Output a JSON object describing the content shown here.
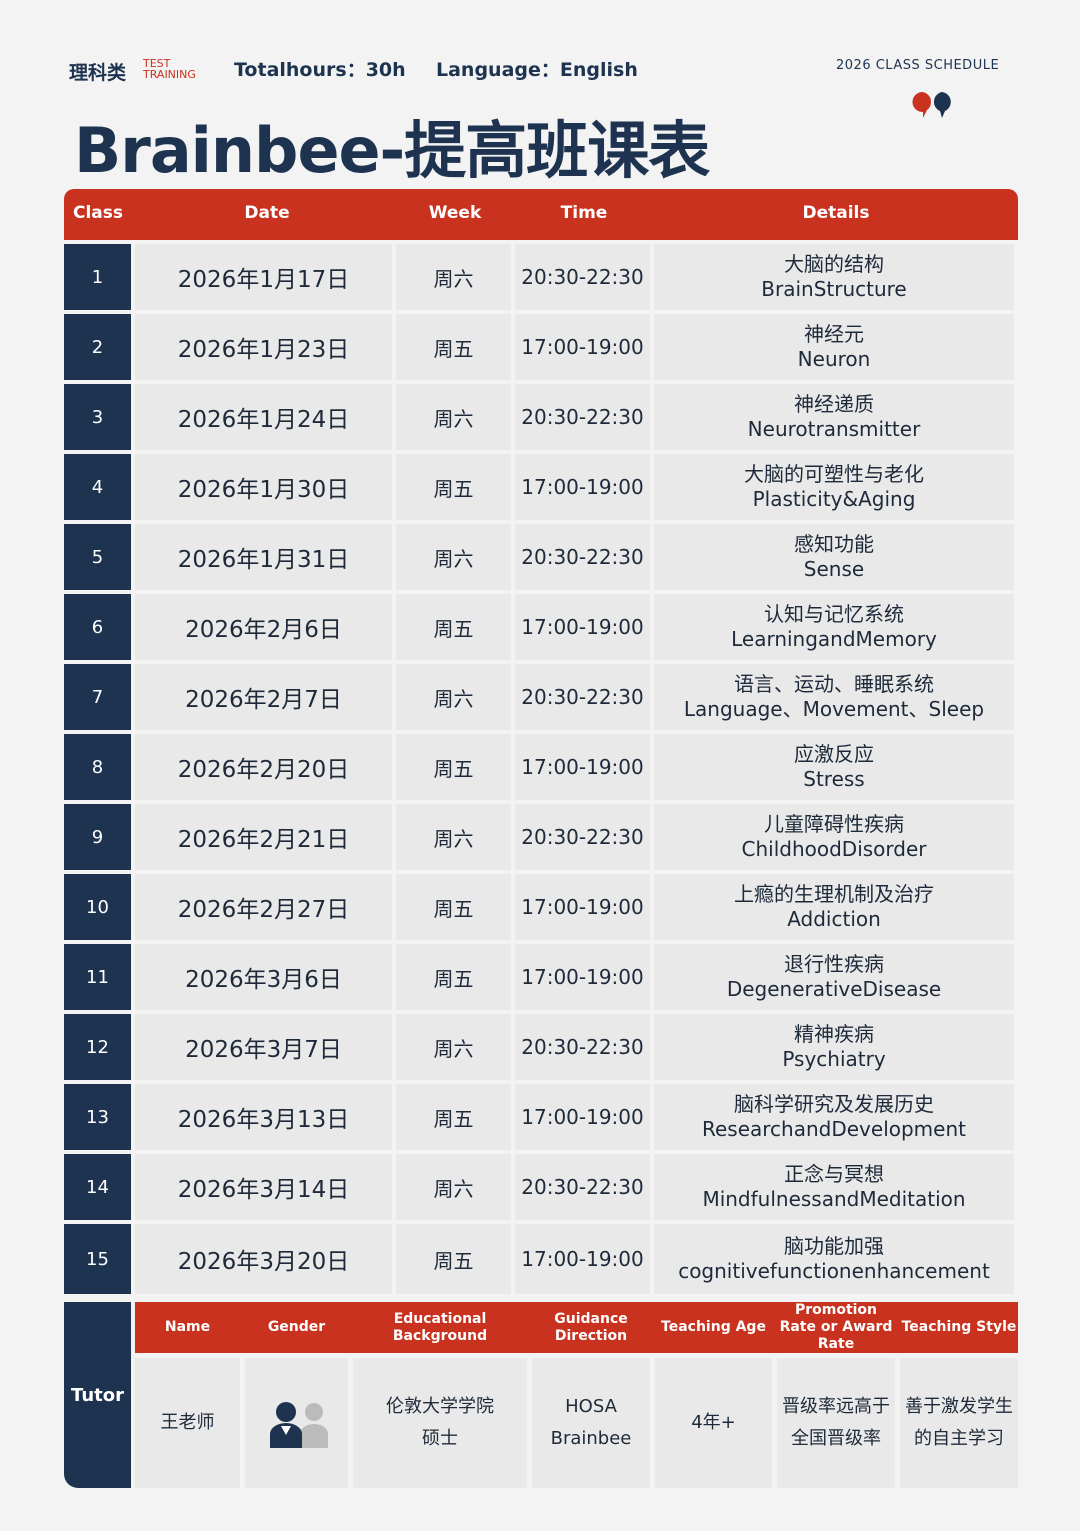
{
  "header": {
    "logo_cn": "理科类",
    "logo_en_1": "TEST",
    "logo_en_2": "TRAINING",
    "total_hours": "Totalhours：30h",
    "language": "Language：English",
    "schedule_label": "2026 CLASS SCHEDULE",
    "title": "Brainbee-提高班课表"
  },
  "colors": {
    "navy": "#1e3350",
    "red": "#c8321e"
  },
  "table": {
    "columns": [
      "Class",
      "Date",
      "Week",
      "Time",
      "Details"
    ],
    "rows": [
      {
        "n": "1",
        "date": "2026年1月17日",
        "week": "周六",
        "time": "20:30-22:30",
        "cn": "大脑的结构",
        "en": "BrainStructure"
      },
      {
        "n": "2",
        "date": "2026年1月23日",
        "week": "周五",
        "time": "17:00-19:00",
        "cn": "神经元",
        "en": "Neuron"
      },
      {
        "n": "3",
        "date": "2026年1月24日",
        "week": "周六",
        "time": "20:30-22:30",
        "cn": "神经递质",
        "en": "Neurotransmitter"
      },
      {
        "n": "4",
        "date": "2026年1月30日",
        "week": "周五",
        "time": "17:00-19:00",
        "cn": "大脑的可塑性与老化",
        "en": "Plasticity&Aging"
      },
      {
        "n": "5",
        "date": "2026年1月31日",
        "week": "周六",
        "time": "20:30-22:30",
        "cn": "感知功能",
        "en": "Sense"
      },
      {
        "n": "6",
        "date": "2026年2月6日",
        "week": "周五",
        "time": "17:00-19:00",
        "cn": "认知与记忆系统",
        "en": "LearningandMemory"
      },
      {
        "n": "7",
        "date": "2026年2月7日",
        "week": "周六",
        "time": "20:30-22:30",
        "cn": "语言、运动、睡眠系统",
        "en": "Language、Movement、Sleep"
      },
      {
        "n": "8",
        "date": "2026年2月20日",
        "week": "周五",
        "time": "17:00-19:00",
        "cn": "应激反应",
        "en": "Stress"
      },
      {
        "n": "9",
        "date": "2026年2月21日",
        "week": "周六",
        "time": "20:30-22:30",
        "cn": "儿童障碍性疾病",
        "en": "ChildhoodDisorder"
      },
      {
        "n": "10",
        "date": "2026年2月27日",
        "week": "周五",
        "time": "17:00-19:00",
        "cn": "上瘾的生理机制及治疗",
        "en": "Addiction"
      },
      {
        "n": "11",
        "date": "2026年3月6日",
        "week": "周五",
        "time": "17:00-19:00",
        "cn": "退行性疾病",
        "en": "DegenerativeDisease"
      },
      {
        "n": "12",
        "date": "2026年3月7日",
        "week": "周六",
        "time": "20:30-22:30",
        "cn": "精神疾病",
        "en": "Psychiatry"
      },
      {
        "n": "13",
        "date": "2026年3月13日",
        "week": "周五",
        "time": "17:00-19:00",
        "cn": "脑科学研究及发展历史",
        "en": "ResearchandDevelopment"
      },
      {
        "n": "14",
        "date": "2026年3月14日",
        "week": "周六",
        "time": "20:30-22:30",
        "cn": "正念与冥想",
        "en": "MindfulnessandMeditation"
      },
      {
        "n": "15",
        "date": "2026年3月20日",
        "week": "周五",
        "time": "17:00-19:00",
        "cn": "脑功能加强",
        "en": "cognitivefunctionenhancement"
      }
    ]
  },
  "tutor": {
    "label": "Tutor",
    "columns": [
      "Name",
      "Gender",
      "Educational Background",
      "Guidance Direction",
      "Teaching Age",
      "Promotion Rate or Award Rate",
      "Teaching Style"
    ],
    "values": [
      [
        "王老师"
      ],
      [],
      [
        "伦敦大学学院",
        "硕士"
      ],
      [
        "HOSA",
        "Brainbee"
      ],
      [
        "4年+"
      ],
      [
        "晋级率远高于",
        "全国晋级率"
      ],
      [
        "善于激发学生",
        "的自主学习"
      ]
    ],
    "gender_icon": "female-male-avatar-icon"
  }
}
